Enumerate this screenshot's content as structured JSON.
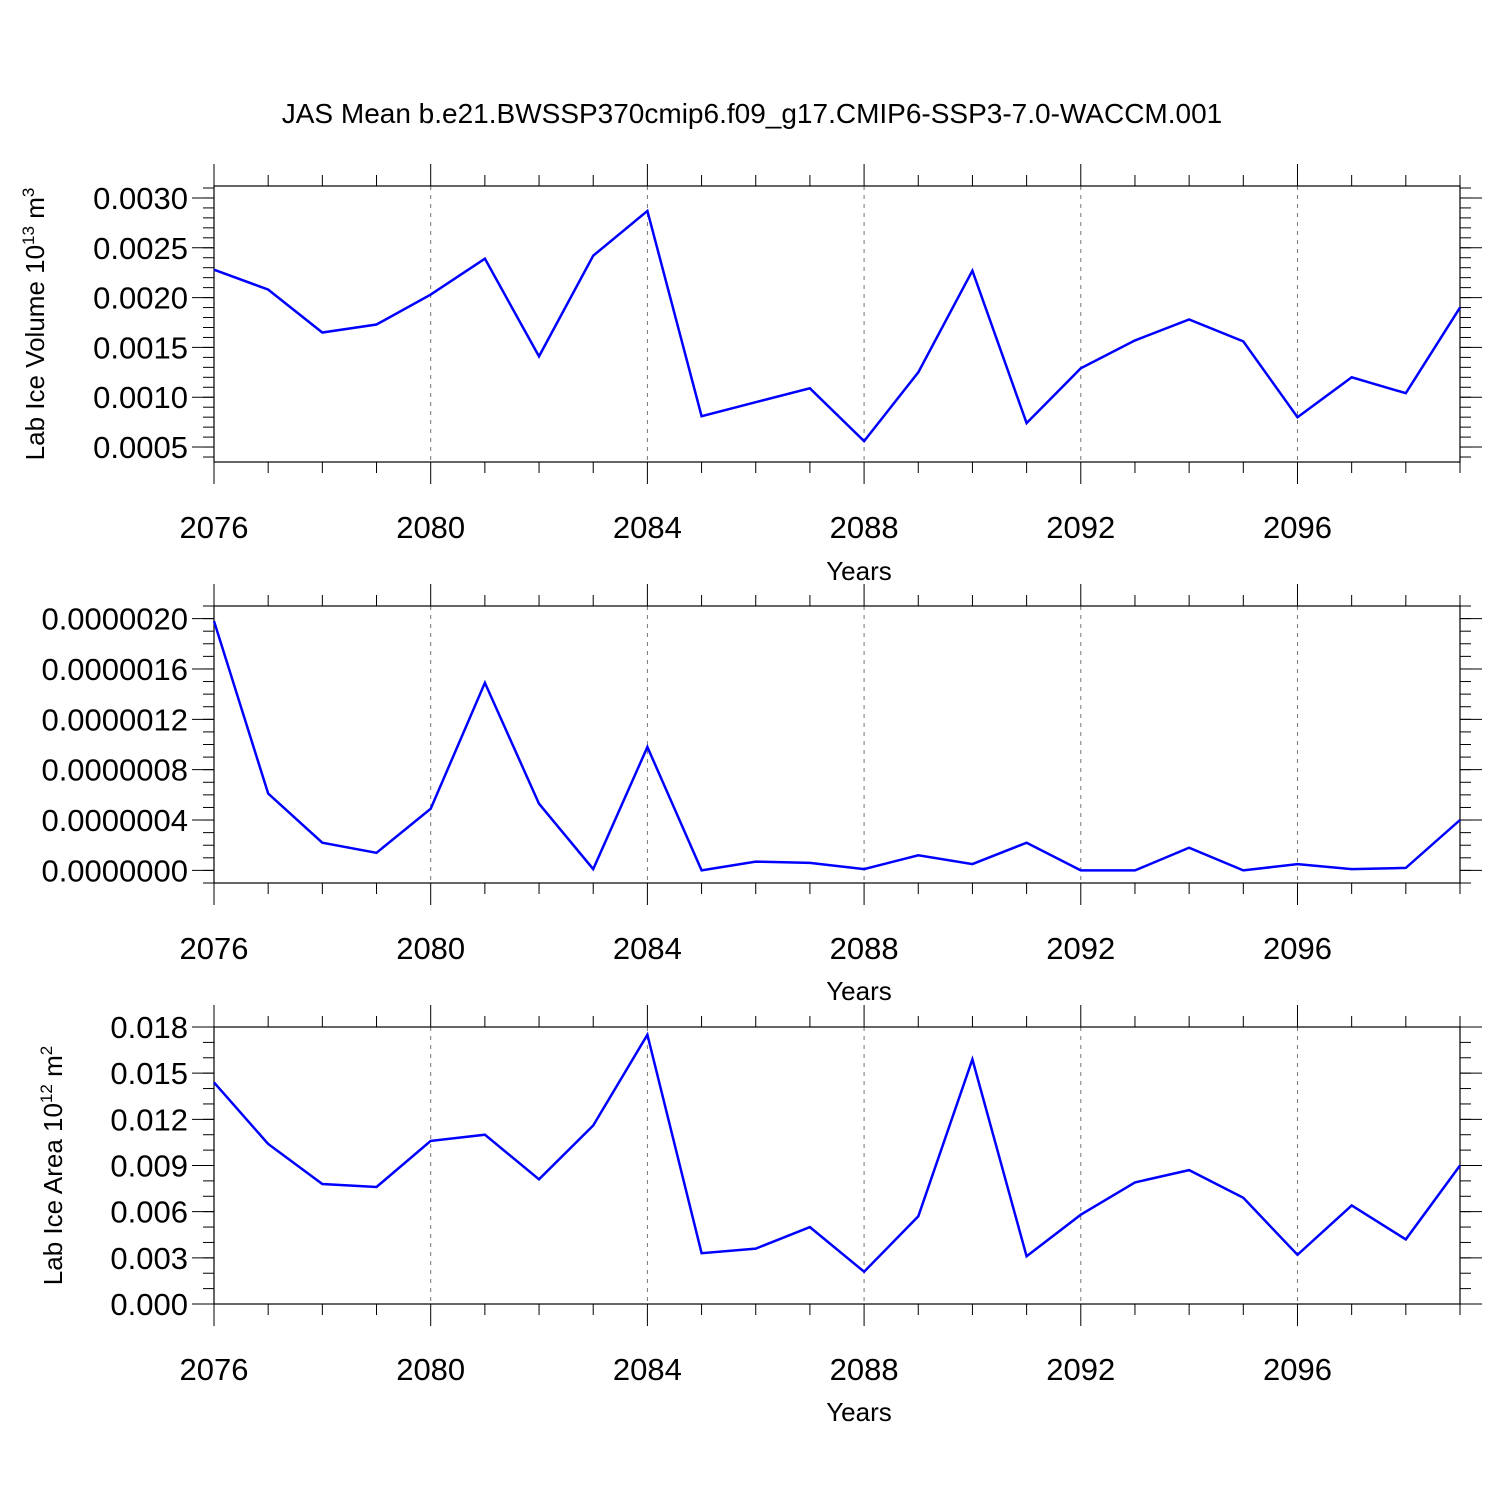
{
  "title": "JAS Mean b.e21.BWSSP370cmip6.f09_g17.CMIP6-SSP3-7.0-WACCM.001",
  "colors": {
    "series": "#0000ff",
    "axis": "#000000",
    "grid": "#777777"
  },
  "chart_data": [
    {
      "type": "line",
      "title": "JAS Mean b.e21.BWSSP370cmip6.f09_g17.CMIP6-SSP3-7.0-WACCM.001",
      "xlabel": "Years",
      "ylabel": {
        "text": "Lab Ice Volume 10",
        "sup": "13",
        "unit": " m",
        "unit_sup": "3"
      },
      "x": [
        2076,
        2077,
        2078,
        2079,
        2080,
        2081,
        2082,
        2083,
        2084,
        2085,
        2086,
        2087,
        2088,
        2089,
        2090,
        2091,
        2092,
        2093,
        2094,
        2095,
        2096,
        2097,
        2098,
        2099
      ],
      "values": [
        0.00228,
        0.00208,
        0.00165,
        0.00173,
        0.00203,
        0.00239,
        0.00141,
        0.00242,
        0.00287,
        0.00081,
        0.00095,
        0.00109,
        0.00056,
        0.00125,
        0.00227,
        0.00074,
        0.00129,
        0.00157,
        0.00178,
        0.00156,
        0.0008,
        0.0012,
        0.00104,
        0.0019
      ],
      "xlim": [
        2076,
        2099
      ],
      "ylim": [
        0.00035,
        0.00312
      ],
      "xticks": [
        2076,
        2080,
        2084,
        2088,
        2092,
        2096
      ],
      "xtick_labels": [
        "2076",
        "2080",
        "2084",
        "2088",
        "2092",
        "2096"
      ],
      "yticks": [
        0.0005,
        0.001,
        0.0015,
        0.002,
        0.0025,
        0.003
      ],
      "ytick_labels": [
        "0.0005",
        "0.0010",
        "0.0015",
        "0.0020",
        "0.0025",
        "0.0030"
      ],
      "yminor_step": 0.0001,
      "grid_x": true
    },
    {
      "type": "line",
      "xlabel": "Years",
      "ylabel": null,
      "x": [
        2076,
        2077,
        2078,
        2079,
        2080,
        2081,
        2082,
        2083,
        2084,
        2085,
        2086,
        2087,
        2088,
        2089,
        2090,
        2091,
        2092,
        2093,
        2094,
        2095,
        2096,
        2097,
        2098,
        2099
      ],
      "values": [
        1.98e-06,
        6.1e-07,
        2.2e-07,
        1.4e-07,
        4.9e-07,
        1.49e-06,
        5.3e-07,
        1e-08,
        9.8e-07,
        0.0,
        7e-08,
        6e-08,
        1e-08,
        1.2e-07,
        5e-08,
        2.2e-07,
        0.0,
        0.0,
        1.8e-07,
        0.0,
        5e-08,
        1e-08,
        2e-08,
        4e-07
      ],
      "xlim": [
        2076,
        2099
      ],
      "ylim": [
        -1e-07,
        2.1e-06
      ],
      "xticks": [
        2076,
        2080,
        2084,
        2088,
        2092,
        2096
      ],
      "xtick_labels": [
        "2076",
        "2080",
        "2084",
        "2088",
        "2092",
        "2096"
      ],
      "yticks": [
        0.0,
        4e-07,
        8e-07,
        1.2e-06,
        1.6e-06,
        2e-06
      ],
      "ytick_labels": [
        "0.0000000",
        "0.0000004",
        "0.0000008",
        "0.0000012",
        "0.0000016",
        "0.0000020"
      ],
      "yminor_step": 1e-07,
      "grid_x": true
    },
    {
      "type": "line",
      "xlabel": "Years",
      "ylabel": {
        "text": "Lab Ice Area 10",
        "sup": "12",
        "unit": " m",
        "unit_sup": "2"
      },
      "x": [
        2076,
        2077,
        2078,
        2079,
        2080,
        2081,
        2082,
        2083,
        2084,
        2085,
        2086,
        2087,
        2088,
        2089,
        2090,
        2091,
        2092,
        2093,
        2094,
        2095,
        2096,
        2097,
        2098,
        2099
      ],
      "values": [
        0.0144,
        0.0104,
        0.0078,
        0.0076,
        0.0106,
        0.011,
        0.0081,
        0.0116,
        0.0175,
        0.0033,
        0.0036,
        0.005,
        0.0021,
        0.0057,
        0.0159,
        0.0031,
        0.0058,
        0.0079,
        0.0087,
        0.0069,
        0.0032,
        0.0064,
        0.0042,
        0.009
      ],
      "xlim": [
        2076,
        2099
      ],
      "ylim": [
        0.0,
        0.018
      ],
      "xticks": [
        2076,
        2080,
        2084,
        2088,
        2092,
        2096
      ],
      "xtick_labels": [
        "2076",
        "2080",
        "2084",
        "2088",
        "2092",
        "2096"
      ],
      "yticks": [
        0.0,
        0.003,
        0.006,
        0.009,
        0.012,
        0.015,
        0.018
      ],
      "ytick_labels": [
        "0.000",
        "0.003",
        "0.006",
        "0.009",
        "0.012",
        "0.015",
        "0.018"
      ],
      "yminor_step": 0.001,
      "grid_x": true
    }
  ]
}
